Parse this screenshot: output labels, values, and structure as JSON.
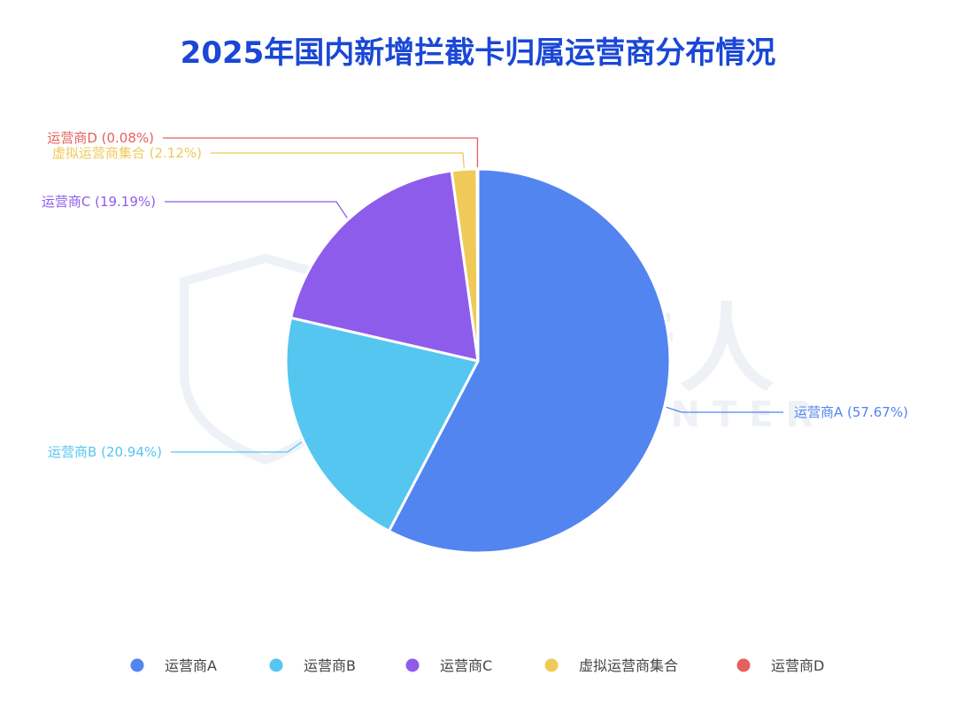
{
  "chart_data": {
    "type": "pie",
    "title": "2025年国内新增拦截卡归属运营商分布情况",
    "slices": [
      {
        "name": "运营商A",
        "value": 57.67,
        "label": "运营商A (57.67%)",
        "color": "#5285f0"
      },
      {
        "name": "运营商B",
        "value": 20.94,
        "label": "运营商B (20.94%)",
        "color": "#55c6f0"
      },
      {
        "name": "运营商C",
        "value": 19.19,
        "label": "运营商C (19.19%)",
        "color": "#8e5ceb"
      },
      {
        "name": "虚拟运营商集合",
        "value": 2.12,
        "label": "虚拟运营商集合 (2.12%)",
        "color": "#efca58"
      },
      {
        "name": "运营商D",
        "value": 0.08,
        "label": "运营商D (0.08%)",
        "color": "#e5605e"
      }
    ],
    "legend_position": "bottom"
  },
  "watermark": {
    "main": "威胁猎人",
    "sub": "THREAT HUNTER"
  }
}
